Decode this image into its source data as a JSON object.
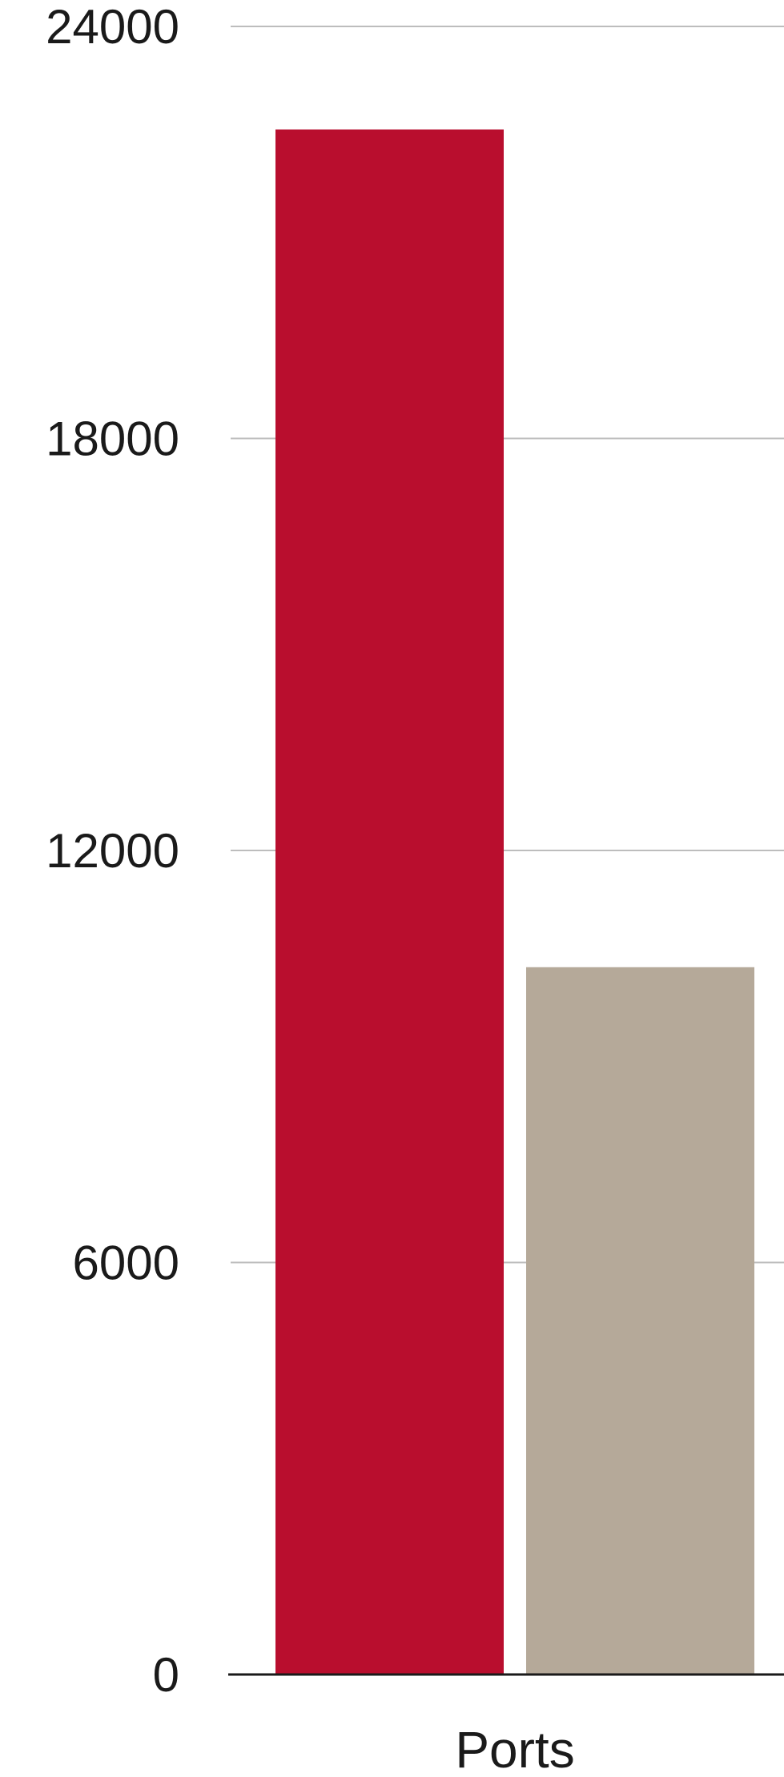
{
  "chart_data": {
    "type": "bar",
    "categories": [
      "Ports"
    ],
    "series": [
      {
        "values": [
          22500
        ],
        "color": "#b90e2e"
      },
      {
        "values": [
          10300
        ],
        "color": "#b5a999"
      }
    ],
    "y_ticks": [
      "0",
      "6000",
      "12000",
      "18000",
      "24000"
    ],
    "ylim": [
      0,
      24000
    ],
    "grid": true,
    "legend": "none",
    "title": "",
    "xlabel": "",
    "ylabel": ""
  }
}
